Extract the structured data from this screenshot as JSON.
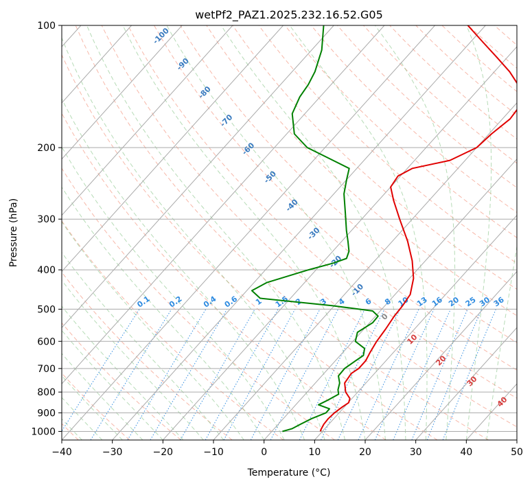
{
  "chart_data": {
    "type": "skew-t",
    "title": "wetPf2_PAZ1.2025.232.16.52.G05",
    "xlabel": "Temperature (°C)",
    "ylabel": "Pressure (hPa)",
    "xlim": [
      -40,
      50
    ],
    "ylim": [
      1050,
      100
    ],
    "x_ticks": [
      -40,
      -30,
      -20,
      -10,
      0,
      10,
      20,
      30,
      40,
      50
    ],
    "y_ticks": [
      100,
      200,
      300,
      400,
      500,
      600,
      700,
      800,
      900,
      1000
    ],
    "grid": true,
    "dry_adiabat_labels": [
      -100,
      -90,
      -80,
      -70,
      -60,
      -50,
      -40,
      -30,
      -20,
      -10
    ],
    "mixing_ratio_labels": [
      "0.1",
      "0.2",
      "0.4",
      "0.6",
      "1",
      "1.5",
      "2",
      "3",
      "4",
      "6",
      "8",
      "10",
      "13",
      "16",
      "20",
      "25",
      "30",
      "36"
    ],
    "moist_adiabat_labels": [
      "0",
      "10",
      "20",
      "30",
      "40"
    ],
    "series": [
      {
        "color": "#e00000",
        "points": [
          [
            1000,
            9.6
          ],
          [
            990,
            9.4
          ],
          [
            960,
            9.0
          ],
          [
            930,
            8.9
          ],
          [
            900,
            9.1
          ],
          [
            870,
            9.6
          ],
          [
            850,
            10.1
          ],
          [
            830,
            9.6
          ],
          [
            800,
            7.6
          ],
          [
            760,
            5.8
          ],
          [
            720,
            5.4
          ],
          [
            700,
            6.0
          ],
          [
            670,
            6.0
          ],
          [
            640,
            5.4
          ],
          [
            600,
            4.7
          ],
          [
            560,
            4.3
          ],
          [
            520,
            3.7
          ],
          [
            490,
            3.5
          ],
          [
            460,
            3.0
          ],
          [
            420,
            0.8
          ],
          [
            380,
            -2.6
          ],
          [
            340,
            -7.0
          ],
          [
            300,
            -12.5
          ],
          [
            270,
            -17.0
          ],
          [
            250,
            -20.0
          ],
          [
            235,
            -20.5
          ],
          [
            225,
            -19.0
          ],
          [
            215,
            -13.0
          ],
          [
            200,
            -10.0
          ],
          [
            185,
            -9.5
          ],
          [
            170,
            -8.5
          ],
          [
            160,
            -8.8
          ],
          [
            150,
            -10.0
          ],
          [
            140,
            -13.0
          ],
          [
            130,
            -17.0
          ],
          [
            120,
            -22.0
          ],
          [
            110,
            -27.5
          ],
          [
            100,
            -33.5
          ]
        ]
      },
      {
        "color": "#008000",
        "points": [
          [
            1000,
            2.1
          ],
          [
            985,
            3.5
          ],
          [
            960,
            4.4
          ],
          [
            930,
            5.6
          ],
          [
            900,
            7.4
          ],
          [
            880,
            7.4
          ],
          [
            860,
            4.5
          ],
          [
            840,
            5.4
          ],
          [
            810,
            6.6
          ],
          [
            790,
            5.7
          ],
          [
            760,
            4.8
          ],
          [
            730,
            3.3
          ],
          [
            700,
            3.2
          ],
          [
            670,
            4.0
          ],
          [
            650,
            4.6
          ],
          [
            625,
            3.6
          ],
          [
            600,
            0.5
          ],
          [
            570,
            -0.7
          ],
          [
            540,
            0.6
          ],
          [
            520,
            0.5
          ],
          [
            505,
            -1.5
          ],
          [
            490,
            -10.5
          ],
          [
            470,
            -26.0
          ],
          [
            450,
            -29.0
          ],
          [
            430,
            -27.5
          ],
          [
            400,
            -21.5
          ],
          [
            385,
            -17.8
          ],
          [
            375,
            -16.0
          ],
          [
            360,
            -16.8
          ],
          [
            340,
            -18.8
          ],
          [
            320,
            -21.0
          ],
          [
            290,
            -24.3
          ],
          [
            260,
            -28.0
          ],
          [
            240,
            -30.0
          ],
          [
            225,
            -31.5
          ],
          [
            210,
            -38.5
          ],
          [
            200,
            -43.5
          ],
          [
            185,
            -48.5
          ],
          [
            165,
            -52.5
          ],
          [
            150,
            -54.0
          ],
          [
            140,
            -54.5
          ],
          [
            130,
            -55.5
          ],
          [
            115,
            -58.0
          ],
          [
            100,
            -62.0
          ]
        ]
      }
    ]
  }
}
